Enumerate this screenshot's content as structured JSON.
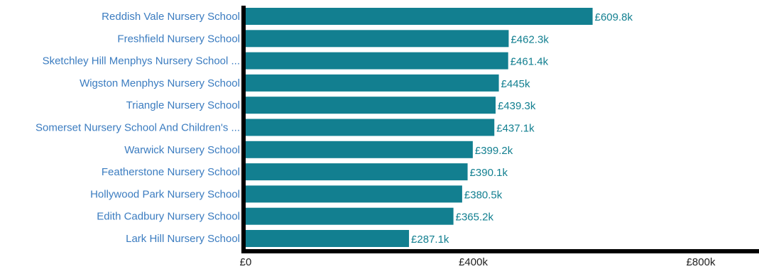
{
  "chart_data": {
    "type": "bar",
    "orientation": "horizontal",
    "title": "",
    "xlabel": "",
    "ylabel": "",
    "categories": [
      "Reddish Vale Nursery School",
      "Freshfield Nursery School",
      "Sketchley Hill Menphys Nursery School ...",
      "Wigston Menphys Nursery School",
      "Triangle Nursery School",
      "Somerset Nursery School And Children's ...",
      "Warwick Nursery School",
      "Featherstone Nursery School",
      "Hollywood Park Nursery School",
      "Edith Cadbury Nursery School",
      "Lark Hill Nursery School"
    ],
    "values": [
      609.8,
      462.3,
      461.4,
      445,
      439.3,
      437.1,
      399.2,
      390.1,
      380.5,
      365.2,
      287.1
    ],
    "value_labels": [
      "£609.8k",
      "£462.3k",
      "£461.4k",
      "£445k",
      "£439.3k",
      "£437.1k",
      "£399.2k",
      "£390.1k",
      "£380.5k",
      "£365.2k",
      "£287.1k"
    ],
    "xlim": [
      0,
      900
    ],
    "ticks": [
      0,
      400,
      800
    ],
    "tick_labels": [
      "£0",
      "£400k",
      "£800k"
    ],
    "grid": false,
    "colors": {
      "bar": "#127f90",
      "category_label": "#3b7cc0",
      "value_label": "#127f90",
      "axis": "#000000"
    }
  }
}
